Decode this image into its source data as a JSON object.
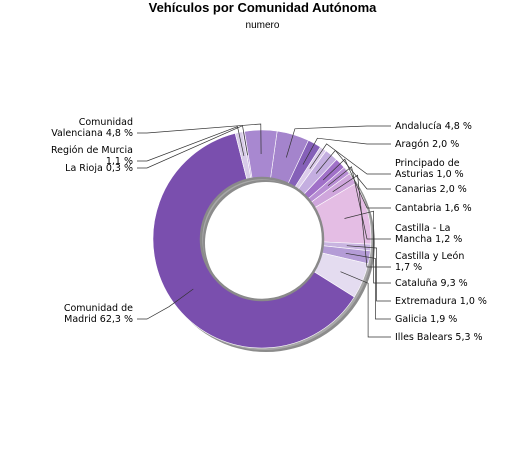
{
  "chart_data": {
    "type": "pie",
    "style": "donut",
    "title": "Vehículos por Comunidad Autónoma",
    "subtitle": "numero",
    "slices": [
      {
        "name": "Andalucía",
        "value": 4.8,
        "label": [
          "Andalucía 4,8 %"
        ],
        "color": "#a484cc"
      },
      {
        "name": "Aragón",
        "value": 2.0,
        "label": [
          "Aragón 2,0 %"
        ],
        "color": "#8560b8"
      },
      {
        "name": "Principado de Asturias",
        "value": 1.0,
        "label": [
          "Principado de",
          "Asturias 1,0 %"
        ],
        "color": "#dccceb"
      },
      {
        "name": "Canarias",
        "value": 2.0,
        "label": [
          "Canarias 2,0 %"
        ],
        "color": "#c4aee0"
      },
      {
        "name": "Cantabria",
        "value": 1.6,
        "label": [
          "Cantabria 1,6 %"
        ],
        "color": "#a070c8"
      },
      {
        "name": "Castilla - La Mancha",
        "value": 1.2,
        "label": [
          "Castilla - La",
          "Mancha 1,2 %"
        ],
        "color": "#b88ed4"
      },
      {
        "name": "Castilla y León",
        "value": 1.7,
        "label": [
          "Castilla y León",
          "1,7 %"
        ],
        "color": "#cfa6dc"
      },
      {
        "name": "Cataluña",
        "value": 9.3,
        "label": [
          "Cataluña 9,3 %"
        ],
        "color": "#e4bde4"
      },
      {
        "name": "Extremadura",
        "value": 1.0,
        "label": [
          "Extremadura 1,0 %"
        ],
        "color": "#c8b4e0"
      },
      {
        "name": "Galicia",
        "value": 1.9,
        "label": [
          "Galicia 1,9 %"
        ],
        "color": "#b49cd6"
      },
      {
        "name": "Illes Balears",
        "value": 5.3,
        "label": [
          "Illes Balears 5,3 %"
        ],
        "color": "#e4dcf0"
      },
      {
        "name": "Comunidad de Madrid",
        "value": 62.3,
        "label": [
          "Comunidad de",
          "Madrid 62,3 %"
        ],
        "color": "#7a4fae"
      },
      {
        "name": "Región de Murcia",
        "value": 1.1,
        "label": [
          "Región de Murcia",
          "1,1 %"
        ],
        "color": "#d8cce8"
      },
      {
        "name": "La Rioja",
        "value": 0.3,
        "label": [
          "La Rioja 0,3 %"
        ],
        "color": "#c0a8dc"
      },
      {
        "name": "Comunidad Valenciana",
        "value": 4.8,
        "label": [
          "Comunidad",
          "Valenciana 4,8 %"
        ],
        "color": "#a888d0"
      }
    ]
  }
}
